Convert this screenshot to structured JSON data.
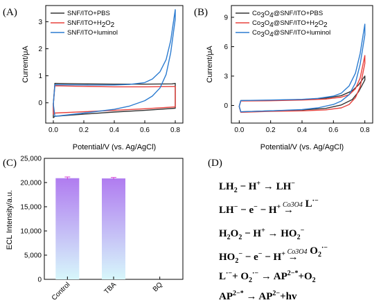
{
  "panels": {
    "A": "(A)",
    "B": "(B)",
    "C": "(C)",
    "D": "(D)"
  },
  "colors": {
    "pbs": "#333333",
    "h2o2": "#e8413c",
    "luminol": "#2b7bd0",
    "bar_top": "#b07cf0",
    "bar_bottom": "#d7f7fb",
    "err": "#d43ad4"
  },
  "chart_data": [
    {
      "type": "line",
      "panel": "A",
      "xlabel": "Potential/V (vs. Ag/AgCl)",
      "ylabel": "Current/μA",
      "xlim": [
        -0.05,
        0.85
      ],
      "ylim": [
        -0.75,
        3.6
      ],
      "xticks": [
        "0.0",
        "0.2",
        "0.4",
        "0.6",
        "0.8"
      ],
      "yticks": [
        "0",
        "1",
        "2",
        "3"
      ],
      "legend": "top-left",
      "grid": false,
      "series": [
        {
          "name": "SNF/ITO+PBS",
          "color_key": "pbs",
          "x": [
            0.0,
            0.01,
            0.2,
            0.4,
            0.6,
            0.78,
            0.8,
            0.8,
            0.6,
            0.4,
            0.2,
            0.01,
            0.0,
            0.0
          ],
          "y": [
            -0.05,
            0.72,
            0.7,
            0.69,
            0.69,
            0.7,
            0.72,
            -0.2,
            -0.28,
            -0.34,
            -0.42,
            -0.5,
            -0.55,
            -0.05
          ]
        },
        {
          "name": "SNF/ITO+H2O2",
          "color_key": "h2o2",
          "x": [
            0.0,
            0.01,
            0.2,
            0.4,
            0.6,
            0.78,
            0.8,
            0.8,
            0.6,
            0.4,
            0.2,
            0.01,
            0.0,
            0.0
          ],
          "y": [
            -0.05,
            0.63,
            0.61,
            0.59,
            0.59,
            0.6,
            0.6,
            -0.15,
            -0.22,
            -0.28,
            -0.33,
            -0.38,
            -0.42,
            -0.05
          ]
        },
        {
          "name": "SNF/ITO+luminol",
          "color_key": "luminol",
          "x": [
            0.0,
            0.01,
            0.2,
            0.4,
            0.5,
            0.6,
            0.65,
            0.7,
            0.74,
            0.77,
            0.8,
            0.8,
            0.77,
            0.74,
            0.7,
            0.65,
            0.6,
            0.5,
            0.4,
            0.2,
            0.01,
            0.0
          ],
          "y": [
            -0.05,
            0.67,
            0.66,
            0.66,
            0.68,
            0.75,
            0.88,
            1.15,
            1.6,
            2.3,
            3.45,
            3.1,
            1.85,
            1.05,
            0.55,
            0.25,
            0.08,
            -0.12,
            -0.24,
            -0.38,
            -0.5,
            -0.05
          ]
        }
      ]
    },
    {
      "type": "line",
      "panel": "B",
      "xlabel": "Potential/V (vs. Ag/AgCl)",
      "ylabel": "Current/μA",
      "xlim": [
        -0.05,
        0.85
      ],
      "ylim": [
        -1.8,
        10.2
      ],
      "xticks": [
        "0.0",
        "0.2",
        "0.4",
        "0.6",
        "0.8"
      ],
      "yticks": [
        "0",
        "3",
        "6",
        "9"
      ],
      "legend": "top-left",
      "grid": false,
      "series": [
        {
          "name": "Co3O4@SNF/ITO+PBS",
          "color_key": "pbs",
          "x": [
            0.0,
            0.01,
            0.2,
            0.4,
            0.55,
            0.65,
            0.72,
            0.76,
            0.8,
            0.8,
            0.76,
            0.72,
            0.65,
            0.55,
            0.4,
            0.2,
            0.01,
            0.0
          ],
          "y": [
            -0.1,
            0.5,
            0.52,
            0.6,
            0.75,
            1.0,
            1.5,
            2.1,
            3.0,
            2.6,
            1.4,
            0.6,
            0.05,
            -0.3,
            -0.45,
            -0.55,
            -0.65,
            -0.1
          ]
        },
        {
          "name": "Co3O4@SNF/ITO+H2O2",
          "color_key": "h2o2",
          "x": [
            0.0,
            0.01,
            0.2,
            0.4,
            0.55,
            0.65,
            0.7,
            0.74,
            0.77,
            0.8,
            0.8,
            0.77,
            0.74,
            0.7,
            0.65,
            0.55,
            0.4,
            0.2,
            0.01,
            0.0
          ],
          "y": [
            -0.1,
            0.45,
            0.48,
            0.55,
            0.65,
            0.85,
            1.1,
            1.7,
            2.8,
            5.1,
            4.3,
            1.9,
            0.8,
            0.1,
            -0.25,
            -0.45,
            -0.55,
            -0.6,
            -0.7,
            -0.1
          ]
        },
        {
          "name": "Co3O4@SNF/ITO+luminol",
          "color_key": "luminol",
          "x": [
            0.0,
            0.01,
            0.2,
            0.4,
            0.5,
            0.6,
            0.65,
            0.7,
            0.74,
            0.77,
            0.8,
            0.8,
            0.77,
            0.74,
            0.7,
            0.65,
            0.6,
            0.5,
            0.4,
            0.2,
            0.01,
            0.0
          ],
          "y": [
            -0.1,
            0.5,
            0.55,
            0.62,
            0.72,
            0.95,
            1.25,
            2.0,
            3.3,
            5.3,
            8.3,
            7.2,
            4.2,
            2.3,
            1.1,
            0.45,
            0.1,
            -0.25,
            -0.42,
            -0.55,
            -0.65,
            -0.1
          ]
        }
      ]
    },
    {
      "type": "bar",
      "panel": "C",
      "categories": [
        "Control",
        "TBA",
        "BQ"
      ],
      "values": [
        20900,
        20850,
        0
      ],
      "errors": [
        250,
        200,
        0
      ],
      "ylabel": "ECL Intensity/a.u.",
      "ylim": [
        0,
        25000
      ],
      "yticks": [
        "0",
        "5,000",
        "10,000",
        "15,000",
        "20,000",
        "25,000"
      ],
      "grid": false
    }
  ],
  "reactions": {
    "r1": [
      "LH",
      "2",
      " − H",
      "+",
      " → LH",
      "−"
    ],
    "r2": [
      "LH",
      "−",
      " − e",
      "−",
      " − H",
      "+",
      " →",
      " L",
      "·−"
    ],
    "r2_cat": "Co3O4",
    "r3": [
      "H",
      "2",
      "O",
      "2",
      " − H",
      "+",
      " → HO",
      "2",
      "−"
    ],
    "r4": [
      "HO",
      "2",
      "−",
      " − e",
      "−",
      " − H",
      "+",
      " →",
      " O",
      "2",
      "·−"
    ],
    "r4_cat": "Co3O4",
    "r5": [
      "L",
      "·−",
      "+ O",
      "2",
      "·−",
      " → AP",
      "2−*",
      "+O",
      "2"
    ],
    "r6": [
      "AP",
      "2−*",
      " → AP",
      "2−",
      "+hv"
    ]
  }
}
